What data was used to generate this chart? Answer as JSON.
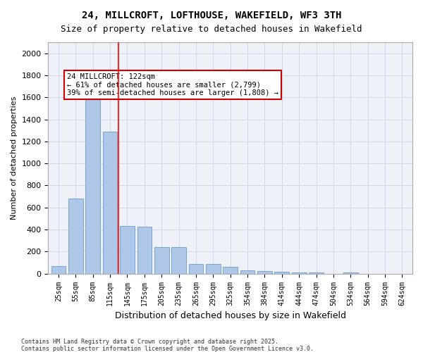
{
  "title1": "24, MILLCROFT, LOFTHOUSE, WAKEFIELD, WF3 3TH",
  "title2": "Size of property relative to detached houses in Wakefield",
  "xlabel": "Distribution of detached houses by size in Wakefield",
  "ylabel": "Number of detached properties",
  "categories": [
    "25sqm",
    "55sqm",
    "85sqm",
    "115sqm",
    "145sqm",
    "175sqm",
    "205sqm",
    "235sqm",
    "265sqm",
    "295sqm",
    "325sqm",
    "354sqm",
    "384sqm",
    "414sqm",
    "444sqm",
    "474sqm",
    "504sqm",
    "534sqm",
    "564sqm",
    "594sqm",
    "624sqm"
  ],
  "values": [
    70,
    680,
    1650,
    1290,
    430,
    425,
    240,
    240,
    90,
    90,
    60,
    30,
    25,
    20,
    10,
    10,
    0,
    10,
    0,
    0,
    0
  ],
  "bar_color": "#aec6e8",
  "bar_edge_color": "#5a8fc0",
  "grid_color": "#d0d8e8",
  "background_color": "#eef2f8",
  "red_line_x": 3.5,
  "annotation_text": "24 MILLCROFT: 122sqm\n← 61% of detached houses are smaller (2,799)\n39% of semi-detached houses are larger (1,808) →",
  "annotation_box_color": "#ffffff",
  "annotation_border_color": "#cc0000",
  "ylim": [
    0,
    2100
  ],
  "yticks": [
    0,
    200,
    400,
    600,
    800,
    1000,
    1200,
    1400,
    1600,
    1800,
    2000
  ],
  "footnote1": "Contains HM Land Registry data © Crown copyright and database right 2025.",
  "footnote2": "Contains public sector information licensed under the Open Government Licence v3.0."
}
